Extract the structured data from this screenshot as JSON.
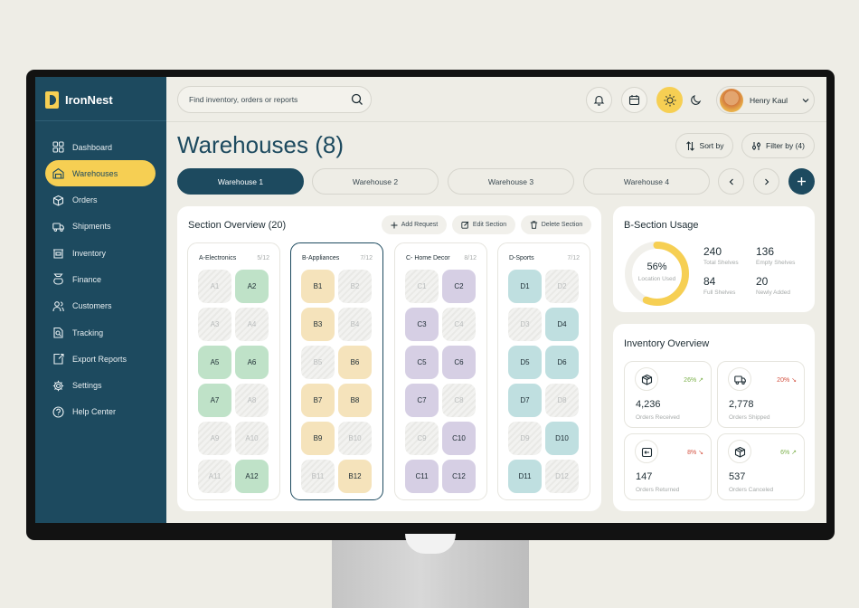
{
  "app": {
    "name": "IronNest"
  },
  "sidebar": {
    "items": [
      {
        "label": "Dashboard",
        "icon": "grid-icon",
        "active": false
      },
      {
        "label": "Warehouses",
        "icon": "warehouse-icon",
        "active": true
      },
      {
        "label": "Orders",
        "icon": "orders-icon",
        "active": false
      },
      {
        "label": "Shipments",
        "icon": "truck-icon",
        "active": false
      },
      {
        "label": "Inventory",
        "icon": "inventory-icon",
        "active": false
      },
      {
        "label": "Finance",
        "icon": "money-bag-icon",
        "active": false
      },
      {
        "label": "Customers",
        "icon": "customers-icon",
        "active": false
      },
      {
        "label": "Tracking",
        "icon": "tracking-icon",
        "active": false
      },
      {
        "label": "Export Reports",
        "icon": "export-icon",
        "active": false
      },
      {
        "label": "Settings",
        "icon": "gear-icon",
        "active": false
      },
      {
        "label": "Help Center",
        "icon": "help-icon",
        "active": false
      }
    ]
  },
  "topbar": {
    "search_placeholder": "Find inventory, orders or reports",
    "user_name": "Henry Kaul"
  },
  "page": {
    "title": "Warehouses (8)",
    "sort_label": "Sort by",
    "filter_label": "Filter by (4)"
  },
  "tabs": [
    "Warehouse 1",
    "Warehouse 2",
    "Warehouse 3",
    "Warehouse 4"
  ],
  "section_overview": {
    "title": "Section Overview (20)",
    "actions": {
      "add": "Add Request",
      "edit": "Edit Section",
      "delete": "Delete Section"
    },
    "sections": [
      {
        "name": "A-Electronics",
        "count": "5/12",
        "color": "a",
        "slots": [
          [
            "A1",
            false
          ],
          [
            "A2",
            true
          ],
          [
            "A3",
            false
          ],
          [
            "A4",
            false
          ],
          [
            "A5",
            true
          ],
          [
            "A6",
            true
          ],
          [
            "A7",
            true
          ],
          [
            "A8",
            false
          ],
          [
            "A9",
            false
          ],
          [
            "A10",
            false
          ],
          [
            "A11",
            false
          ],
          [
            "A12",
            true
          ]
        ]
      },
      {
        "name": "B-Appliances",
        "count": "7/12",
        "color": "b",
        "slots": [
          [
            "B1",
            true
          ],
          [
            "B2",
            false
          ],
          [
            "B3",
            true
          ],
          [
            "B4",
            false
          ],
          [
            "B5",
            false
          ],
          [
            "B6",
            true
          ],
          [
            "B7",
            true
          ],
          [
            "B8",
            true
          ],
          [
            "B9",
            true
          ],
          [
            "B10",
            false
          ],
          [
            "B11",
            false
          ],
          [
            "B12",
            true
          ]
        ]
      },
      {
        "name": "C- Home Decor",
        "count": "8/12",
        "color": "c",
        "slots": [
          [
            "C1",
            false
          ],
          [
            "C2",
            true
          ],
          [
            "C3",
            true
          ],
          [
            "C4",
            false
          ],
          [
            "C5",
            true
          ],
          [
            "C6",
            true
          ],
          [
            "C7",
            true
          ],
          [
            "C8",
            false
          ],
          [
            "C9",
            false
          ],
          [
            "C10",
            true
          ],
          [
            "C11",
            true
          ],
          [
            "C12",
            true
          ]
        ]
      },
      {
        "name": "D-Sports",
        "count": "7/12",
        "color": "d",
        "slots": [
          [
            "D1",
            true
          ],
          [
            "D2",
            false
          ],
          [
            "D3",
            false
          ],
          [
            "D4",
            true
          ],
          [
            "D5",
            true
          ],
          [
            "D6",
            true
          ],
          [
            "D7",
            true
          ],
          [
            "D8",
            false
          ],
          [
            "D9",
            false
          ],
          [
            "D10",
            true
          ],
          [
            "D11",
            true
          ],
          [
            "D12",
            false
          ]
        ]
      }
    ]
  },
  "usage": {
    "title": "B-Section Usage",
    "percent": "56%",
    "percent_value": 56,
    "percent_label": "Location Used",
    "stats": [
      {
        "value": "240",
        "label": "Total Shelves"
      },
      {
        "value": "136",
        "label": "Empty Shelves"
      },
      {
        "value": "84",
        "label": "Full Shelves"
      },
      {
        "value": "20",
        "label": "Newly Added"
      }
    ]
  },
  "inventory": {
    "title": "Inventory Overview",
    "tiles": [
      {
        "value": "4,236",
        "label": "Orders Received",
        "pct": "26% ↗",
        "trend": "up",
        "icon": "box-icon"
      },
      {
        "value": "2,778",
        "label": "Orders Shipped",
        "pct": "20% ↘",
        "trend": "down",
        "icon": "truck-icon"
      },
      {
        "value": "147",
        "label": "Orders Returned",
        "pct": "8% ↘",
        "trend": "down",
        "icon": "return-icon"
      },
      {
        "value": "537",
        "label": "Orders Canceled",
        "pct": "6% ↗",
        "trend": "up",
        "icon": "box-icon"
      }
    ]
  },
  "colors": {
    "primary": "#1d4a5f",
    "accent": "#f6cf53",
    "up": "#7bb04a",
    "down": "#d3503f"
  }
}
